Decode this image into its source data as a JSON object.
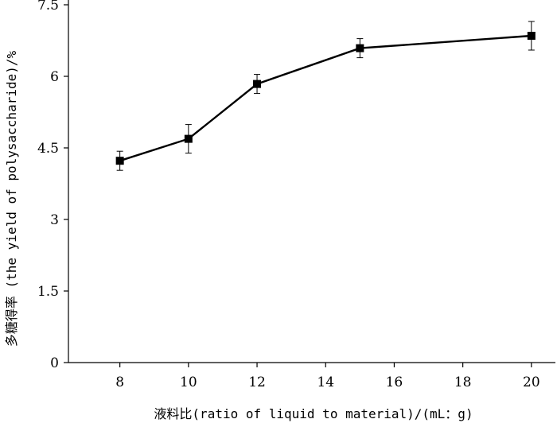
{
  "chart_data": {
    "type": "line",
    "xlabel": "液料比(ratio of liquid to material)/(mL：g)",
    "ylabel": "多糖得率 (the yield of polysaccharide)/%",
    "xlim": [
      6.5,
      20.7
    ],
    "ylim": [
      0,
      7.5
    ],
    "x_ticks": [
      "8",
      "10",
      "12",
      "14",
      "16",
      "18",
      "20"
    ],
    "y_ticks": [
      "0",
      "1.5",
      "3",
      "4.5",
      "6",
      "7.5"
    ],
    "grid": false,
    "series": [
      {
        "x": [
          8,
          10,
          12,
          15,
          20
        ],
        "y": [
          4.23,
          4.69,
          5.84,
          6.59,
          6.85
        ],
        "error": [
          0.2,
          0.3,
          0.2,
          0.2,
          0.3
        ]
      }
    ],
    "colors": {
      "line": "#000000",
      "marker": "#000000",
      "axis": "#000000"
    }
  }
}
